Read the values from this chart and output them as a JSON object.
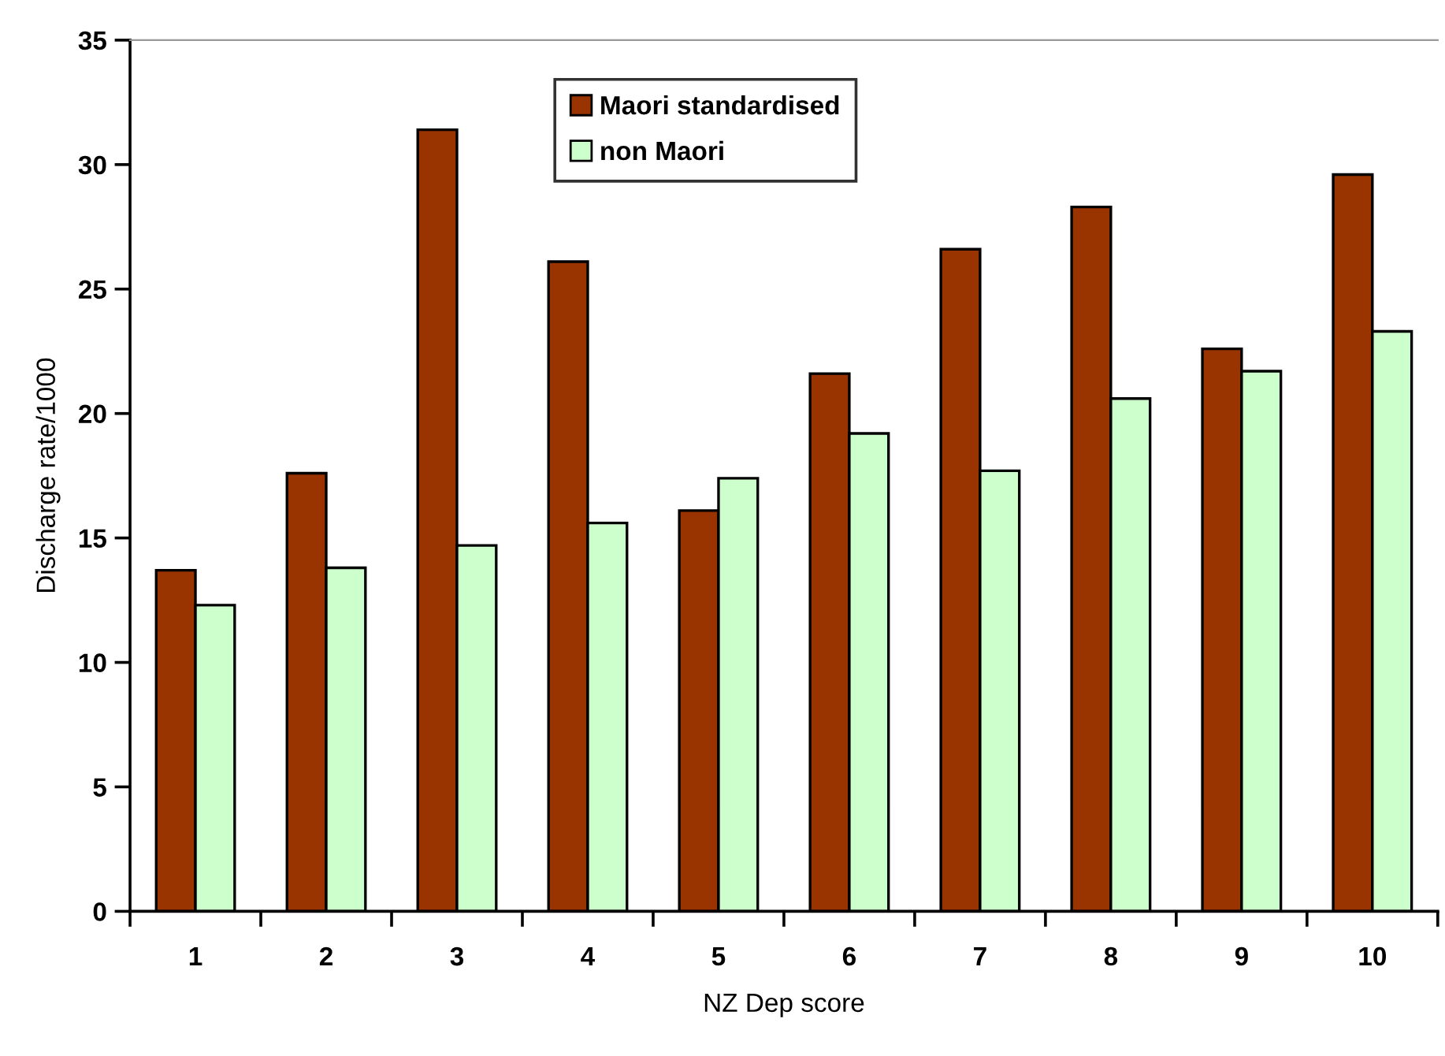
{
  "chart_data": {
    "type": "bar",
    "xlabel": "NZ Dep score",
    "ylabel": "Discharge rate/1000",
    "categories": [
      "1",
      "2",
      "3",
      "4",
      "5",
      "6",
      "7",
      "8",
      "9",
      "10"
    ],
    "series": [
      {
        "name": "Maori standardised",
        "color": "#993300",
        "values": [
          13.7,
          17.6,
          31.4,
          26.1,
          16.1,
          21.6,
          26.6,
          28.3,
          22.6,
          29.6
        ]
      },
      {
        "name": "non Maori",
        "color": "#ccffcc",
        "values": [
          12.3,
          13.8,
          14.7,
          15.6,
          17.4,
          19.2,
          17.7,
          20.6,
          21.7,
          23.3
        ]
      }
    ],
    "ylim": [
      0,
      35
    ],
    "yticks": [
      0,
      5,
      10,
      15,
      20,
      25,
      30,
      35
    ],
    "grid": false,
    "legend": "top"
  }
}
